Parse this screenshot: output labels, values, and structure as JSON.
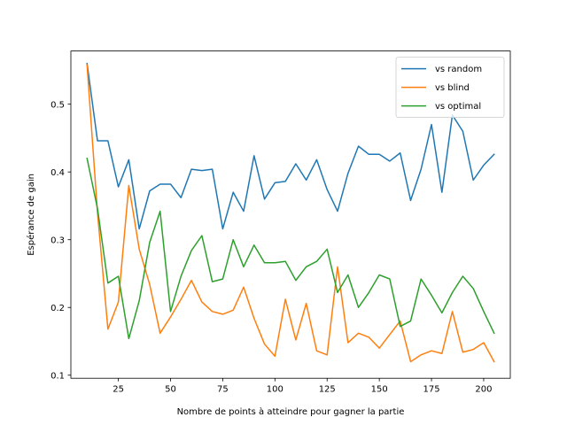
{
  "chart_data": {
    "type": "line",
    "title": "",
    "xlabel": "Nombre de points à atteindre pour gagner la partie",
    "ylabel": "Espérance de gain",
    "xlim": [
      2.25,
      212.75
    ],
    "ylim": [
      0.0955,
      0.5785
    ],
    "xticks": [
      25,
      50,
      75,
      100,
      125,
      150,
      175,
      200
    ],
    "yticks": [
      0.1,
      0.2,
      0.3,
      0.4,
      0.5
    ],
    "ytick_labels": [
      "0.1",
      "0.2",
      "0.3",
      "0.4",
      "0.5"
    ],
    "grid": false,
    "legend_position": "top-right",
    "x": [
      10,
      15,
      20,
      25,
      30,
      35,
      40,
      45,
      50,
      55,
      60,
      65,
      70,
      75,
      80,
      85,
      90,
      95,
      100,
      105,
      110,
      115,
      120,
      125,
      130,
      135,
      140,
      145,
      150,
      155,
      160,
      165,
      170,
      175,
      180,
      185,
      190,
      195,
      200,
      205
    ],
    "series": [
      {
        "name": "vs random",
        "color": "#1f77b4",
        "values": [
          0.56,
          0.446,
          0.446,
          0.378,
          0.418,
          0.316,
          0.372,
          0.382,
          0.382,
          0.362,
          0.404,
          0.402,
          0.404,
          0.316,
          0.37,
          0.342,
          0.424,
          0.36,
          0.384,
          0.386,
          0.412,
          0.388,
          0.418,
          0.374,
          0.342,
          0.398,
          0.438,
          0.426,
          0.426,
          0.416,
          0.428,
          0.358,
          0.404,
          0.47,
          0.37,
          0.484,
          0.46,
          0.388,
          0.41,
          0.426
        ]
      },
      {
        "name": "vs blind",
        "color": "#ff7f0e",
        "values": [
          0.558,
          0.34,
          0.168,
          0.208,
          0.38,
          0.286,
          0.234,
          0.162,
          0.186,
          0.212,
          0.24,
          0.208,
          0.194,
          0.19,
          0.196,
          0.23,
          0.184,
          0.146,
          0.128,
          0.212,
          0.152,
          0.206,
          0.136,
          0.13,
          0.26,
          0.148,
          0.162,
          0.156,
          0.14,
          0.16,
          0.18,
          0.12,
          0.13,
          0.136,
          0.132,
          0.194,
          0.134,
          0.138,
          0.148,
          0.12
        ]
      },
      {
        "name": "vs optimal",
        "color": "#2ca02c",
        "values": [
          0.42,
          0.346,
          0.236,
          0.246,
          0.154,
          0.21,
          0.296,
          0.342,
          0.194,
          0.246,
          0.284,
          0.306,
          0.238,
          0.242,
          0.3,
          0.26,
          0.292,
          0.266,
          0.266,
          0.268,
          0.24,
          0.26,
          0.268,
          0.286,
          0.222,
          0.248,
          0.2,
          0.222,
          0.248,
          0.242,
          0.172,
          0.18,
          0.242,
          0.218,
          0.192,
          0.222,
          0.246,
          0.228,
          0.194,
          0.162
        ]
      }
    ]
  }
}
